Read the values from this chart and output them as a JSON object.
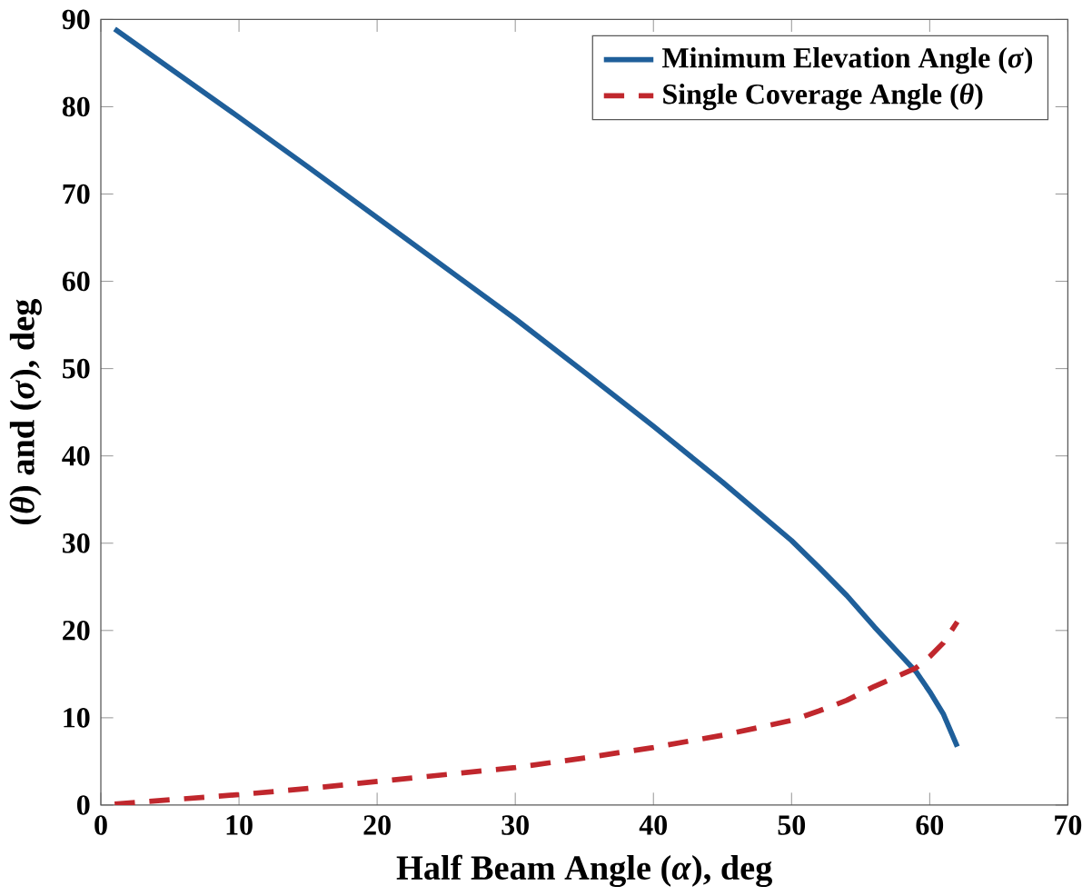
{
  "chart_data": {
    "type": "line",
    "xlabel": "Half Beam Angle (*α*), deg",
    "ylabel": "(*θ*) and (*σ*), deg",
    "xlim": [
      0,
      70
    ],
    "ylim": [
      0,
      90
    ],
    "xticks": [
      0,
      10,
      20,
      30,
      40,
      50,
      60,
      70
    ],
    "yticks": [
      0,
      10,
      20,
      30,
      40,
      50,
      60,
      70,
      80,
      90
    ],
    "grid": false,
    "legend": "top right",
    "x": [
      1,
      5,
      10,
      15,
      20,
      25,
      30,
      35,
      40,
      45,
      50,
      52,
      54,
      56,
      58,
      59,
      60,
      61,
      62
    ],
    "series": [
      {
        "name": "Minimum Elevation Angle (*σ*)",
        "color": "#1f5f9a",
        "line_style": "solid",
        "values": [
          88.9,
          84.4,
          78.8,
          73.1,
          67.3,
          61.5,
          55.7,
          49.6,
          43.4,
          37.0,
          30.3,
          27.2,
          24.0,
          20.4,
          17.0,
          15.3,
          13.0,
          10.4,
          6.7
        ]
      },
      {
        "name": "Single Coverage Angle (*θ*)",
        "color": "#c0272d",
        "line_style": "dashed",
        "values": [
          0.1,
          0.6,
          1.2,
          1.9,
          2.7,
          3.5,
          4.3,
          5.4,
          6.6,
          8.0,
          9.7,
          10.8,
          12.0,
          13.6,
          15.0,
          15.7,
          17.0,
          18.6,
          21.0
        ]
      }
    ]
  }
}
